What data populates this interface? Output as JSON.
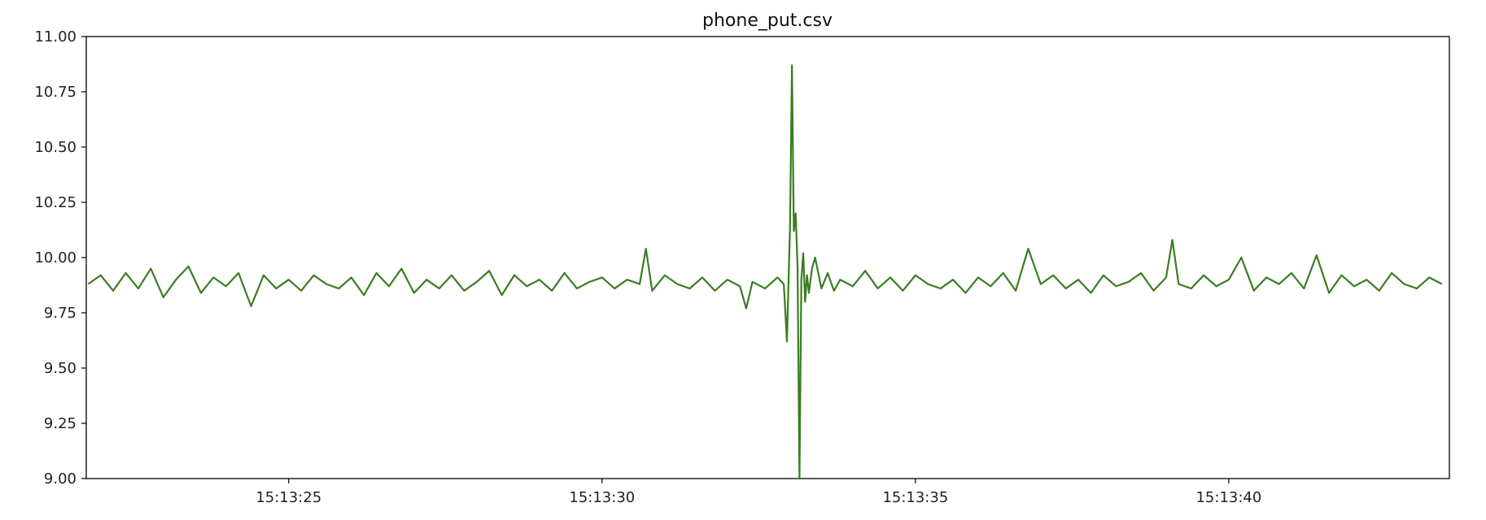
{
  "chart_data": {
    "type": "line",
    "title": "phone_put.csv",
    "xlabel": "",
    "ylabel": "",
    "x_range": [
      "15:13:21.77",
      "15:13:43.52"
    ],
    "ylim": [
      9.0,
      11.0
    ],
    "grid": false,
    "legend": "none",
    "line_color": "#3a7d22",
    "x_tick_labels": [
      "15:13:25",
      "15:13:30",
      "15:13:35",
      "15:13:40"
    ],
    "y_tick_labels": [
      "9.00",
      "9.25",
      "9.50",
      "9.75",
      "10.00",
      "10.25",
      "10.50",
      "10.75",
      "11.00"
    ],
    "series": [
      {
        "x": [
          "15:13:21.80",
          "15:13:22.00",
          "15:13:22.20",
          "15:13:22.40",
          "15:13:22.60",
          "15:13:22.80",
          "15:13:23.00",
          "15:13:23.20",
          "15:13:23.40",
          "15:13:23.60",
          "15:13:23.80",
          "15:13:24.00",
          "15:13:24.20",
          "15:13:24.40",
          "15:13:24.60",
          "15:13:24.80",
          "15:13:25.00",
          "15:13:25.20",
          "15:13:25.40",
          "15:13:25.60",
          "15:13:25.80",
          "15:13:26.00",
          "15:13:26.20",
          "15:13:26.40",
          "15:13:26.60",
          "15:13:26.80",
          "15:13:27.00",
          "15:13:27.20",
          "15:13:27.40",
          "15:13:27.60",
          "15:13:27.80",
          "15:13:28.00",
          "15:13:28.20",
          "15:13:28.40",
          "15:13:28.60",
          "15:13:28.80",
          "15:13:29.00",
          "15:13:29.20",
          "15:13:29.40",
          "15:13:29.60",
          "15:13:29.80",
          "15:13:30.00",
          "15:13:30.20",
          "15:13:30.40",
          "15:13:30.60",
          "15:13:30.70",
          "15:13:30.80",
          "15:13:31.00",
          "15:13:31.20",
          "15:13:31.40",
          "15:13:31.60",
          "15:13:31.80",
          "15:13:32.00",
          "15:13:32.20",
          "15:13:32.30",
          "15:13:32.40",
          "15:13:32.60",
          "15:13:32.80",
          "15:13:32.90",
          "15:13:32.95",
          "15:13:33.00",
          "15:13:33.03",
          "15:13:33.06",
          "15:13:33.09",
          "15:13:33.12",
          "15:13:33.15",
          "15:13:33.18",
          "15:13:33.21",
          "15:13:33.24",
          "15:13:33.27",
          "15:13:33.30",
          "15:13:33.35",
          "15:13:33.40",
          "15:13:33.50",
          "15:13:33.60",
          "15:13:33.70",
          "15:13:33.80",
          "15:13:34.00",
          "15:13:34.20",
          "15:13:34.40",
          "15:13:34.60",
          "15:13:34.80",
          "15:13:35.00",
          "15:13:35.20",
          "15:13:35.40",
          "15:13:35.60",
          "15:13:35.80",
          "15:13:36.00",
          "15:13:36.20",
          "15:13:36.40",
          "15:13:36.60",
          "15:13:36.80",
          "15:13:37.00",
          "15:13:37.20",
          "15:13:37.40",
          "15:13:37.60",
          "15:13:37.80",
          "15:13:38.00",
          "15:13:38.20",
          "15:13:38.40",
          "15:13:38.60",
          "15:13:38.80",
          "15:13:39.00",
          "15:13:39.10",
          "15:13:39.20",
          "15:13:39.40",
          "15:13:39.60",
          "15:13:39.80",
          "15:13:40.00",
          "15:13:40.20",
          "15:13:40.40",
          "15:13:40.60",
          "15:13:40.80",
          "15:13:41.00",
          "15:13:41.20",
          "15:13:41.40",
          "15:13:41.60",
          "15:13:41.80",
          "15:13:42.00",
          "15:13:42.20",
          "15:13:42.40",
          "15:13:42.60",
          "15:13:42.80",
          "15:13:43.00",
          "15:13:43.20",
          "15:13:43.40"
        ],
        "y": [
          9.88,
          9.92,
          9.85,
          9.93,
          9.86,
          9.95,
          9.82,
          9.9,
          9.96,
          9.84,
          9.91,
          9.87,
          9.93,
          9.78,
          9.92,
          9.86,
          9.9,
          9.85,
          9.92,
          9.88,
          9.86,
          9.91,
          9.83,
          9.93,
          9.87,
          9.95,
          9.84,
          9.9,
          9.86,
          9.92,
          9.85,
          9.89,
          9.94,
          9.83,
          9.92,
          9.87,
          9.9,
          9.85,
          9.93,
          9.86,
          9.89,
          9.91,
          9.86,
          9.9,
          9.88,
          10.04,
          9.85,
          9.92,
          9.88,
          9.86,
          9.91,
          9.85,
          9.9,
          9.87,
          9.77,
          9.89,
          9.86,
          9.91,
          9.88,
          9.62,
          10.15,
          10.87,
          10.12,
          10.2,
          9.95,
          9.0,
          9.9,
          10.02,
          9.8,
          9.92,
          9.84,
          9.95,
          10.0,
          9.86,
          9.93,
          9.85,
          9.9,
          9.87,
          9.94,
          9.86,
          9.91,
          9.85,
          9.92,
          9.88,
          9.86,
          9.9,
          9.84,
          9.91,
          9.87,
          9.93,
          9.85,
          10.04,
          9.88,
          9.92,
          9.86,
          9.9,
          9.84,
          9.92,
          9.87,
          9.89,
          9.93,
          9.85,
          9.91,
          10.08,
          9.88,
          9.86,
          9.92,
          9.87,
          9.9,
          10.0,
          9.85,
          9.91,
          9.88,
          9.93,
          9.86,
          10.01,
          9.84,
          9.92,
          9.87,
          9.9,
          9.85,
          9.93,
          9.88,
          9.86,
          9.91,
          9.88
        ]
      }
    ]
  }
}
